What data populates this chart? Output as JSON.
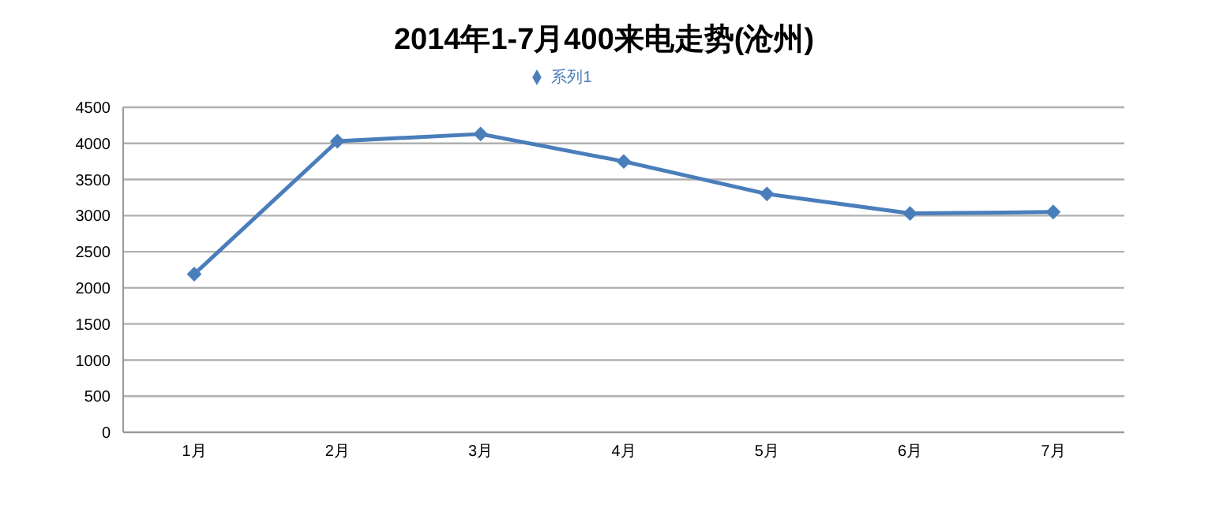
{
  "chart_data": {
    "type": "line",
    "title": "2014年1-7月400来电走势(沧州)",
    "categories": [
      "1月",
      "2月",
      "3月",
      "4月",
      "5月",
      "6月",
      "7月"
    ],
    "series": [
      {
        "name": "系列1",
        "color": "#4a7ebb",
        "values": [
          2190,
          4030,
          4130,
          3750,
          3300,
          3030,
          3050
        ]
      }
    ],
    "ylim": [
      0,
      4500
    ],
    "yticks": [
      0,
      500,
      1000,
      1500,
      2000,
      2500,
      3000,
      3500,
      4000,
      4500
    ],
    "grid": "y",
    "legend": "top",
    "marker": "diamond",
    "line_style": "solid"
  }
}
